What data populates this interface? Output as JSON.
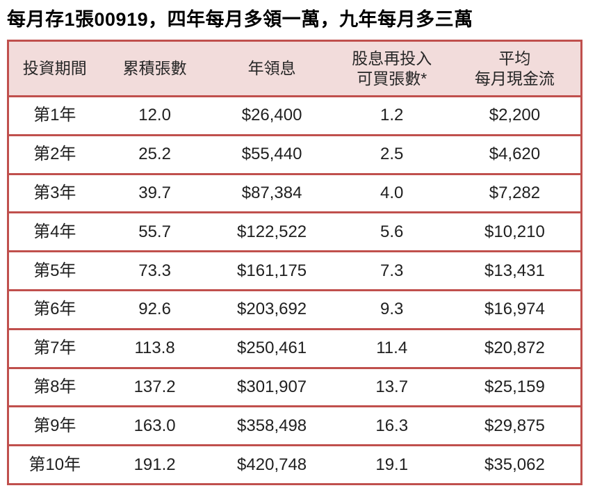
{
  "page": {
    "title": "每月存1張00919，四年每月多領一萬，九年每月多三萬"
  },
  "colors": {
    "border_red": "#C0504D",
    "header_pink": "#F2DCDB",
    "text": "#1F1F1F",
    "background": "#FFFFFF"
  },
  "table": {
    "headers": [
      "投資期間",
      "累積張數",
      "年領息",
      "股息再投入\n可買張數*",
      "平均\n每月現金流"
    ]
  },
  "chart_data": {
    "type": "table",
    "title": "每月存1張00919，四年每月多領一萬，九年每月多三萬",
    "columns": [
      "投資期間",
      "累積張數",
      "年領息",
      "股息再投入可買張數*",
      "平均每月現金流"
    ],
    "rows": [
      [
        "第1年",
        "12.0",
        "$26,400",
        "1.2",
        "$2,200"
      ],
      [
        "第2年",
        "25.2",
        "$55,440",
        "2.5",
        "$4,620"
      ],
      [
        "第3年",
        "39.7",
        "$87,384",
        "4.0",
        "$7,282"
      ],
      [
        "第4年",
        "55.7",
        "$122,522",
        "5.6",
        "$10,210"
      ],
      [
        "第5年",
        "73.3",
        "$161,175",
        "7.3",
        "$13,431"
      ],
      [
        "第6年",
        "92.6",
        "$203,692",
        "9.3",
        "$16,974"
      ],
      [
        "第7年",
        "113.8",
        "$250,461",
        "11.4",
        "$20,872"
      ],
      [
        "第8年",
        "137.2",
        "$301,907",
        "13.7",
        "$25,159"
      ],
      [
        "第9年",
        "163.0",
        "$358,498",
        "16.3",
        "$29,875"
      ],
      [
        "第10年",
        "191.2",
        "$420,748",
        "19.1",
        "$35,062"
      ]
    ]
  }
}
